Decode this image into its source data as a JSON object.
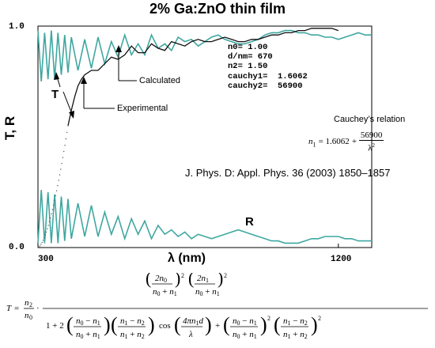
{
  "chart_data": {
    "type": "line",
    "title": "2% Ga:ZnO thin film",
    "xlabel": "λ (nm)",
    "ylabel": "T, R",
    "xlim": [
      300,
      1300
    ],
    "ylim": [
      0.0,
      1.0
    ],
    "x_ticks": [
      {
        "value": 300,
        "label": "300"
      },
      {
        "value": 1200,
        "label": "1200"
      }
    ],
    "y_ticks": [
      {
        "value": 0.0,
        "label": "0.0"
      },
      {
        "value": 1.0,
        "label": "1.0"
      }
    ],
    "grid": false,
    "colors": {
      "calculated": "#3fa7a0",
      "experimental": "#111111",
      "absorption_dots": "#555555"
    },
    "series": [
      {
        "name": "T",
        "x": [
          300,
          310,
          320,
          330,
          340,
          350,
          360,
          370,
          380,
          390,
          400,
          420,
          440,
          460,
          480,
          500,
          520,
          540,
          560,
          580,
          600,
          620,
          640,
          660,
          680,
          700,
          720,
          740,
          760,
          780,
          800,
          820,
          840,
          860,
          880,
          900,
          920,
          940,
          960,
          980,
          1000,
          1020,
          1040,
          1060,
          1080,
          1100,
          1120,
          1140,
          1160,
          1180,
          1200,
          1220,
          1240,
          1260,
          1280,
          1300
        ],
        "values": [
          0.98,
          0.75,
          0.97,
          0.76,
          0.98,
          0.76,
          0.97,
          0.78,
          0.96,
          0.79,
          0.95,
          0.8,
          0.94,
          0.81,
          0.95,
          0.83,
          0.93,
          0.86,
          0.96,
          0.87,
          0.92,
          0.87,
          0.96,
          0.9,
          0.92,
          0.89,
          0.95,
          0.93,
          0.94,
          0.91,
          0.93,
          0.95,
          0.96,
          0.94,
          0.93,
          0.92,
          0.92,
          0.93,
          0.94,
          0.96,
          0.97,
          0.97,
          0.98,
          0.98,
          0.97,
          0.97,
          0.96,
          0.96,
          0.95,
          0.95,
          0.94,
          0.95,
          0.96,
          0.97,
          0.96,
          0.96
        ]
      },
      {
        "name": "R",
        "x": [
          300,
          310,
          320,
          330,
          340,
          350,
          360,
          370,
          380,
          390,
          400,
          420,
          440,
          460,
          480,
          500,
          520,
          540,
          560,
          580,
          600,
          620,
          640,
          660,
          680,
          700,
          720,
          740,
          760,
          780,
          800,
          820,
          840,
          860,
          880,
          900,
          920,
          940,
          960,
          980,
          1000,
          1020,
          1040,
          1060,
          1080,
          1100,
          1120,
          1140,
          1160,
          1180,
          1200,
          1220,
          1240,
          1260,
          1280,
          1300
        ],
        "values": [
          0.02,
          0.26,
          0.02,
          0.25,
          0.02,
          0.24,
          0.02,
          0.23,
          0.03,
          0.22,
          0.04,
          0.2,
          0.05,
          0.19,
          0.05,
          0.16,
          0.06,
          0.14,
          0.04,
          0.13,
          0.06,
          0.12,
          0.04,
          0.1,
          0.06,
          0.08,
          0.05,
          0.07,
          0.04,
          0.06,
          0.05,
          0.04,
          0.05,
          0.06,
          0.07,
          0.08,
          0.07,
          0.06,
          0.05,
          0.04,
          0.03,
          0.03,
          0.02,
          0.02,
          0.02,
          0.03,
          0.04,
          0.04,
          0.05,
          0.05,
          0.05,
          0.04,
          0.04,
          0.03,
          0.03,
          0.03
        ]
      },
      {
        "name": "Experimental",
        "x": [
          390,
          400,
          410,
          420,
          430,
          440,
          460,
          480,
          500,
          520,
          540,
          560,
          580,
          600,
          620,
          640,
          660,
          680,
          700,
          720,
          740,
          760,
          780,
          800,
          820,
          840,
          860,
          880,
          900,
          920,
          940,
          960,
          980,
          1000,
          1020,
          1040,
          1060,
          1080,
          1100,
          1120,
          1140,
          1160,
          1180,
          1200
        ],
        "values": [
          0.55,
          0.62,
          0.68,
          0.73,
          0.76,
          0.78,
          0.8,
          0.8,
          0.83,
          0.86,
          0.85,
          0.87,
          0.91,
          0.88,
          0.88,
          0.92,
          0.9,
          0.89,
          0.93,
          0.92,
          0.91,
          0.93,
          0.94,
          0.93,
          0.93,
          0.94,
          0.95,
          0.94,
          0.93,
          0.93,
          0.94,
          0.94,
          0.95,
          0.96,
          0.96,
          0.97,
          0.97,
          0.98,
          0.98,
          0.99,
          0.99,
          0.99,
          0.99,
          0.98
        ]
      }
    ],
    "annotations": {
      "params": [
        "n0= 1.00",
        "d/nm= 670",
        "n2= 1.50",
        "cauchy1=  1.6062",
        "cauchy2=  56900"
      ],
      "calculated_label": "Calculated",
      "experimental_label": "Experimental",
      "T_label": "T",
      "R_label": "R",
      "cauchy_title": "Cauchey’s relation",
      "cauchy_lhs": "n",
      "cauchy_sub": "1",
      "cauchy_const": "1.6062",
      "cauchy_num": "56900",
      "cauchy_den": "λ",
      "cauchy_den_exp": "2",
      "citation": "J. Phys. D: Appl. Phys. 36 (2003) 1850–1857"
    },
    "formula": {
      "lhs": "T",
      "n2": "n",
      "n2_sub": "2",
      "n0": "n",
      "n0_sub": "0"
    }
  }
}
